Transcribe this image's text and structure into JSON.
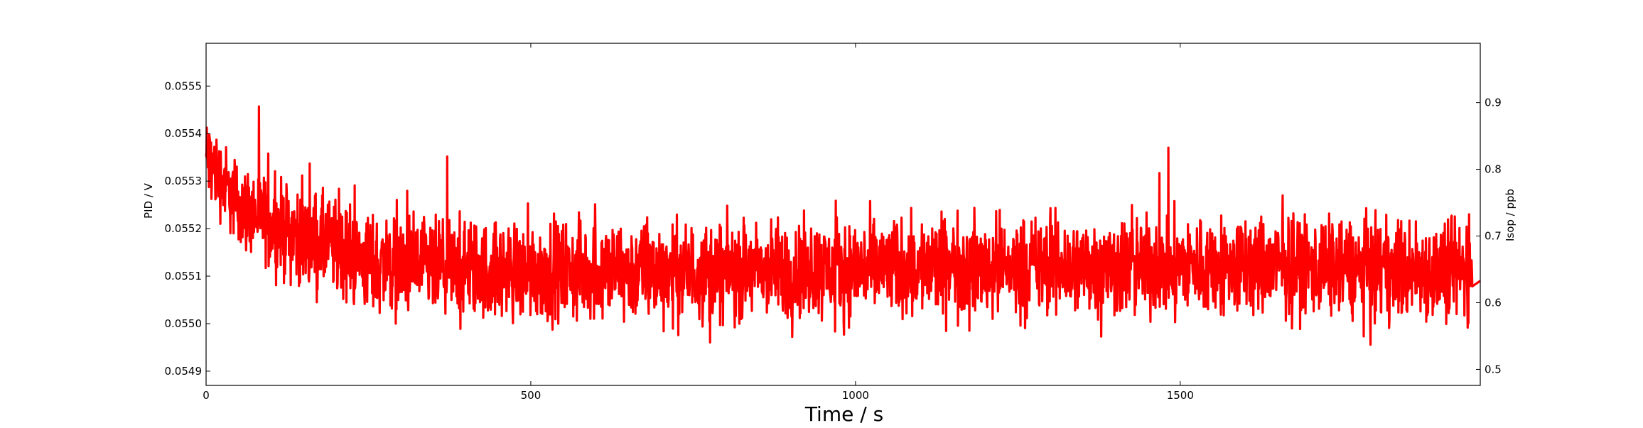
{
  "chart_data": {
    "type": "line",
    "title": "",
    "xlabel": "Time / s",
    "ylabel": "PID / V",
    "y2label": "Isop / ppb",
    "xlim": [
      0,
      1962
    ],
    "ylim": [
      0.05487,
      0.05559
    ],
    "y2lim": [
      0.476,
      0.989
    ],
    "xticks": [
      0,
      500,
      1000,
      1500
    ],
    "xtick_labels": [
      "0",
      "500",
      "1000",
      "1500"
    ],
    "yticks": [
      0.0549,
      0.055,
      0.0551,
      0.0552,
      0.0553,
      0.0554,
      0.0555
    ],
    "ytick_labels": [
      "0.0549",
      "0.0550",
      "0.0551",
      "0.0552",
      "0.0553",
      "0.0554",
      "0.0555"
    ],
    "y2ticks": [
      0.5,
      0.6,
      0.7,
      0.8,
      0.9
    ],
    "y2tick_labels": [
      "0.5",
      "0.6",
      "0.7",
      "0.8",
      "0.9"
    ],
    "grid": false,
    "legend": "none",
    "series": [
      {
        "color": "#ff0000",
        "description_trend": "noisy signal decaying from ~0.05535 at t=0 to a noisy plateau around 0.05512 after ~250 s, ending near 0.05510 at t=1962",
        "envelope_x": [
          0,
          50,
          100,
          150,
          200,
          250,
          300,
          400,
          500,
          700,
          900,
          1100,
          1300,
          1500,
          1700,
          1900,
          1950,
          1962
        ],
        "envelope_center": [
          0.05535,
          0.05525,
          0.05521,
          0.05518,
          0.05516,
          0.05513,
          0.05512,
          0.05511,
          0.05511,
          0.05511,
          0.05511,
          0.05512,
          0.05512,
          0.05512,
          0.05512,
          0.05511,
          0.05512,
          0.05509
        ],
        "envelope_spread": [
          0.0001,
          0.0001,
          0.00011,
          0.00012,
          0.00012,
          0.00012,
          0.00012,
          0.00012,
          0.00012,
          0.00012,
          0.00012,
          0.00012,
          0.00012,
          0.00012,
          0.00012,
          0.00012,
          0.00012,
          0.0
        ]
      }
    ]
  }
}
